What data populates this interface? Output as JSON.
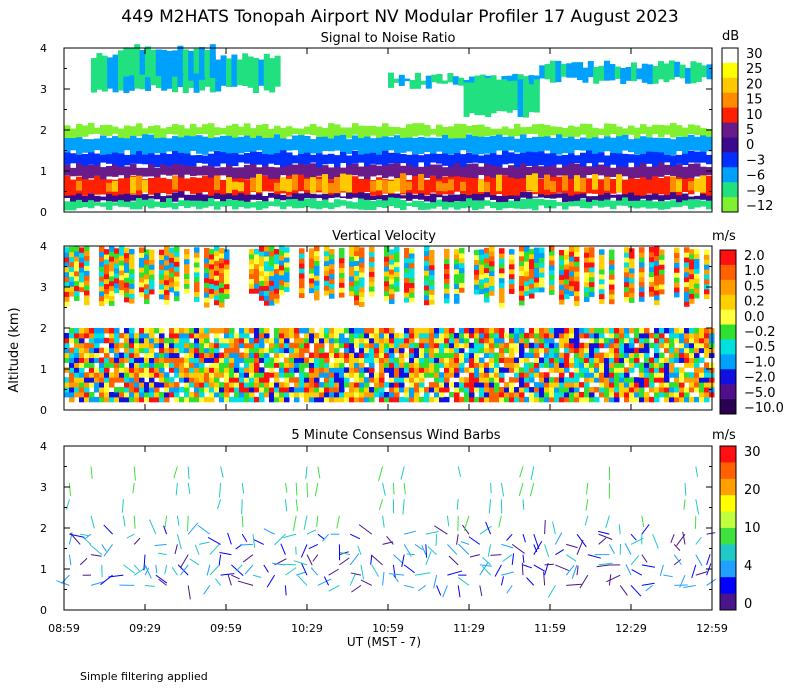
{
  "title": "449 M2HATS Tonopah Airport NV Modular Profiler 17 August 2023",
  "y_axis_label": "Altitude (km)",
  "x_axis_label": "UT  (MST - 7)",
  "footer_note": "Simple filtering applied",
  "chart_data": [
    {
      "type": "heatmap",
      "title": "Signal to Noise Ratio",
      "xlabel": "UT  (MST - 7)",
      "ylabel": "Altitude (km)",
      "x_ticks": [
        "08:59",
        "09:29",
        "09:59",
        "10:29",
        "10:59",
        "11:29",
        "11:59",
        "12:29",
        "12:59"
      ],
      "y_ticks": [
        "0",
        "1",
        "2",
        "3",
        "4"
      ],
      "xlim_minutes": [
        0,
        240
      ],
      "ylim_km": [
        0,
        4
      ],
      "colorbar": {
        "unit": "dB",
        "labels": [
          "30",
          "25",
          "20",
          "15",
          "10",
          "5",
          "0",
          "−3",
          "−6",
          "−9",
          "−12"
        ],
        "colors": [
          "#ffffff",
          "#ffff00",
          "#ffc800",
          "#ff8c00",
          "#ff2000",
          "#6a1b8a",
          "#3c0a8c",
          "#0030ff",
          "#00a0ff",
          "#20e080",
          "#80f030"
        ]
      },
      "layers": [
        {
          "min_km": 0.1,
          "max_km": 0.3,
          "level": "−9"
        },
        {
          "min_km": 0.3,
          "max_km": 0.45,
          "level": "0"
        },
        {
          "min_km": 0.45,
          "max_km": 0.85,
          "level": "10"
        },
        {
          "min_km": 0.85,
          "max_km": 1.15,
          "level": "5"
        },
        {
          "min_km": 1.15,
          "max_km": 1.45,
          "level": "−3"
        },
        {
          "min_km": 1.45,
          "max_km": 1.85,
          "level": "−6"
        },
        {
          "min_km": 1.85,
          "max_km": 2.1,
          "level": "−12"
        }
      ]
    },
    {
      "type": "heatmap",
      "title": "Vertical Velocity",
      "xlabel": "UT  (MST - 7)",
      "ylabel": "Altitude (km)",
      "x_ticks": [
        "08:59",
        "09:29",
        "09:59",
        "10:29",
        "10:59",
        "11:29",
        "11:59",
        "12:29",
        "12:59"
      ],
      "y_ticks": [
        "0",
        "1",
        "2",
        "3",
        "4"
      ],
      "xlim_minutes": [
        0,
        240
      ],
      "ylim_km": [
        0,
        4
      ],
      "colorbar": {
        "unit": "m/s",
        "labels": [
          "2.0",
          "1.0",
          "0.5",
          "0.2",
          "0.0",
          "−0.2",
          "−0.5",
          "−1.0",
          "−2.0",
          "−5.0",
          "−10.0"
        ],
        "colors": [
          "#ff1010",
          "#ff6000",
          "#ff9c00",
          "#ffd000",
          "#ffff40",
          "#30e030",
          "#00e0e0",
          "#00a0ff",
          "#1010e0",
          "#50108c",
          "#2a0050"
        ]
      }
    },
    {
      "type": "scatter",
      "title": "5 Minute Consensus Wind Barbs",
      "xlabel": "UT  (MST - 7)",
      "ylabel": "Altitude (km)",
      "x_ticks": [
        "08:59",
        "09:29",
        "09:59",
        "10:29",
        "10:59",
        "11:29",
        "11:59",
        "12:29",
        "12:59"
      ],
      "y_ticks": [
        "0",
        "1",
        "2",
        "3",
        "4"
      ],
      "xlim_minutes": [
        0,
        240
      ],
      "ylim_km": [
        0,
        4
      ],
      "colorbar": {
        "unit": "m/s",
        "labels": [
          "30",
          "20",
          "10",
          "4",
          "0"
        ],
        "colors": [
          "#ff1010",
          "#ff6000",
          "#ffa000",
          "#ffff00",
          "#c0ff40",
          "#40e040",
          "#20c8c8",
          "#20a0ff",
          "#0000ff",
          "#4a148c"
        ]
      }
    }
  ]
}
